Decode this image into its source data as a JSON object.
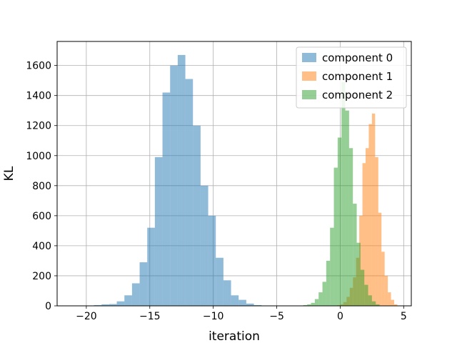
{
  "chart_data": {
    "type": "histogram",
    "title": "",
    "xlabel": "iteration",
    "ylabel": "KL",
    "xlim": [
      -22.3,
      5.6
    ],
    "ylim": [
      0,
      1760
    ],
    "xticks": [
      -20,
      -15,
      -10,
      -5,
      0,
      5
    ],
    "xtick_labels": [
      "−20",
      "−15",
      "−10",
      "−5",
      "0",
      "5"
    ],
    "yticks": [
      0,
      200,
      400,
      600,
      800,
      1000,
      1200,
      1400,
      1600
    ],
    "grid": true,
    "legend_position": "top-right",
    "series": [
      {
        "name": "component 0",
        "color": "#1f77b4",
        "opacity": 0.5,
        "bin_width": 0.6,
        "bins": [
          [
            -20.0,
            2
          ],
          [
            -19.4,
            5
          ],
          [
            -18.8,
            10
          ],
          [
            -18.2,
            12
          ],
          [
            -17.6,
            30
          ],
          [
            -17.0,
            70
          ],
          [
            -16.4,
            150
          ],
          [
            -15.8,
            290
          ],
          [
            -15.2,
            520
          ],
          [
            -14.6,
            990
          ],
          [
            -14.0,
            1420
          ],
          [
            -13.4,
            1600
          ],
          [
            -12.8,
            1670
          ],
          [
            -12.2,
            1510
          ],
          [
            -11.6,
            1200
          ],
          [
            -11.0,
            800
          ],
          [
            -10.4,
            600
          ],
          [
            -9.8,
            320
          ],
          [
            -9.2,
            170
          ],
          [
            -8.6,
            70
          ],
          [
            -8.0,
            40
          ],
          [
            -7.4,
            15
          ],
          [
            -6.8,
            5
          ],
          [
            -6.2,
            2
          ]
        ]
      },
      {
        "name": "component 1",
        "color": "#ff7f0e",
        "opacity": 0.5,
        "bin_width": 0.25,
        "bins": [
          [
            -0.5,
            2
          ],
          [
            -0.25,
            4
          ],
          [
            0.0,
            10
          ],
          [
            0.25,
            25
          ],
          [
            0.5,
            60
          ],
          [
            0.75,
            120
          ],
          [
            1.0,
            190
          ],
          [
            1.25,
            320
          ],
          [
            1.5,
            600
          ],
          [
            1.75,
            950
          ],
          [
            2.0,
            1050
          ],
          [
            2.25,
            1210
          ],
          [
            2.5,
            1280
          ],
          [
            2.75,
            990
          ],
          [
            3.0,
            620
          ],
          [
            3.25,
            360
          ],
          [
            3.5,
            200
          ],
          [
            3.75,
            90
          ],
          [
            4.0,
            40
          ],
          [
            4.25,
            10
          ]
        ]
      },
      {
        "name": "component 2",
        "color": "#2ca02c",
        "opacity": 0.5,
        "bin_width": 0.3,
        "bins": [
          [
            -2.9,
            5
          ],
          [
            -2.6,
            10
          ],
          [
            -2.3,
            20
          ],
          [
            -2.0,
            45
          ],
          [
            -1.7,
            90
          ],
          [
            -1.4,
            160
          ],
          [
            -1.1,
            300
          ],
          [
            -0.8,
            520
          ],
          [
            -0.5,
            920
          ],
          [
            -0.2,
            1120
          ],
          [
            0.1,
            1490
          ],
          [
            0.4,
            1300
          ],
          [
            0.7,
            1050
          ],
          [
            1.0,
            680
          ],
          [
            1.3,
            420
          ],
          [
            1.6,
            240
          ],
          [
            1.9,
            140
          ],
          [
            2.2,
            70
          ],
          [
            2.5,
            30
          ],
          [
            2.8,
            10
          ]
        ]
      }
    ]
  }
}
